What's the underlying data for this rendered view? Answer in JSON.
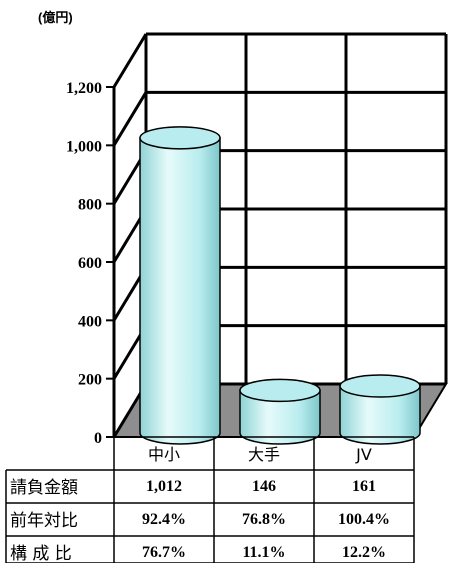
{
  "chart_data": {
    "type": "bar",
    "style": "3d-cylinder",
    "unit_label": "(億円)",
    "categories": [
      "中小",
      "大手",
      "JV"
    ],
    "values": [
      1012,
      146,
      161
    ],
    "ylim": [
      0,
      1200
    ],
    "yticks": [
      "0",
      "200",
      "400",
      "600",
      "800",
      "1,000",
      "1,200"
    ],
    "grid": true,
    "bar_color": "#b8ecee",
    "table": {
      "rows": [
        {
          "label": "請負金額",
          "cells": [
            "1,012",
            "146",
            "161"
          ]
        },
        {
          "label": "前年対比",
          "cells": [
            "92.4%",
            "76.8%",
            "100.4%"
          ]
        },
        {
          "label": "構 成 比",
          "cells": [
            "76.7%",
            "11.1%",
            "12.2%"
          ]
        }
      ]
    }
  }
}
